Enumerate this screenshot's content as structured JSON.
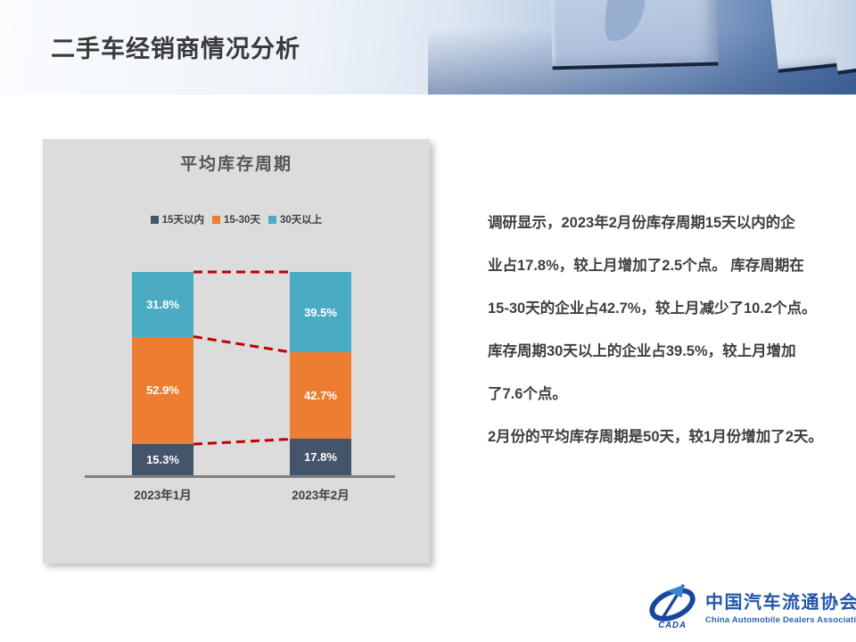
{
  "slide": {
    "title": "二手车经销商情况分析"
  },
  "chart_data": {
    "type": "bar",
    "subtype": "stacked-100-percent-column",
    "title": "平均库存周期",
    "categories": [
      "2023年1月",
      "2023年2月"
    ],
    "series": [
      {
        "name": "15天以内",
        "color": "#44546a",
        "values": [
          15.3,
          17.8
        ]
      },
      {
        "name": "15-30天",
        "color": "#ed7d31",
        "values": [
          52.9,
          42.7
        ]
      },
      {
        "name": "30天以上",
        "color": "#4aabc3",
        "values": [
          31.8,
          39.5
        ]
      }
    ],
    "value_labels": true,
    "value_label_format": "0.0%",
    "legend_position": "top",
    "ylim": [
      0,
      100
    ],
    "grid": false,
    "connectors": {
      "style": "dashed",
      "color": "#c00000"
    },
    "panel_background": "#dcdcdc",
    "axis_line_color": "#7f7f7f"
  },
  "analysis": {
    "lines": [
      "调研显示，2023年2月份库存周期15天以内的企",
      "业占17.8%，较上月增加了2.5个点。 库存周期在",
      "15-30天的企业占42.7%，较上月减少了10.2个点。",
      "库存周期30天以上的企业占39.5%，较上月增加",
      "了7.6个点。",
      "2月份的平均库存周期是50天，较1月份增加了2天。"
    ]
  },
  "footer": {
    "logo_cn": "中国汽车流通协会",
    "logo_en": "China Automobile Dealers Association",
    "logo_mark": "CADA"
  }
}
